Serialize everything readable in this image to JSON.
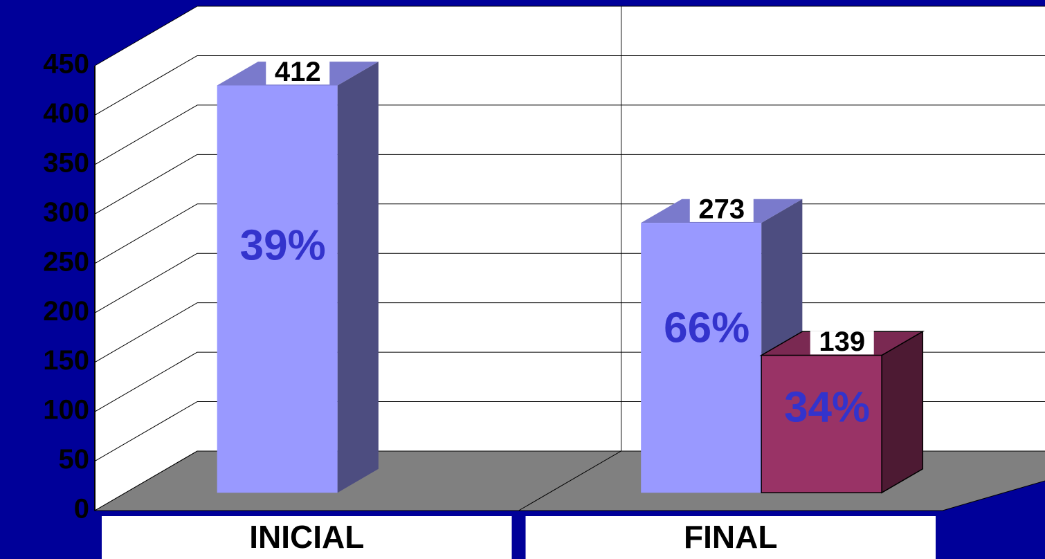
{
  "chart_data": {
    "type": "bar3d",
    "categories": [
      "INICIAL",
      "FINAL"
    ],
    "series": [
      {
        "color": "#9999ff",
        "values": [
          412,
          273
        ],
        "percent_labels": [
          "39%",
          "66%"
        ]
      },
      {
        "color": "#993366",
        "values": [
          null,
          139
        ],
        "percent_labels": [
          null,
          "34%"
        ]
      }
    ],
    "ylim": [
      0,
      450
    ],
    "yticks": [
      0,
      50,
      100,
      150,
      200,
      250,
      300,
      350,
      400,
      450
    ],
    "grid": true
  }
}
